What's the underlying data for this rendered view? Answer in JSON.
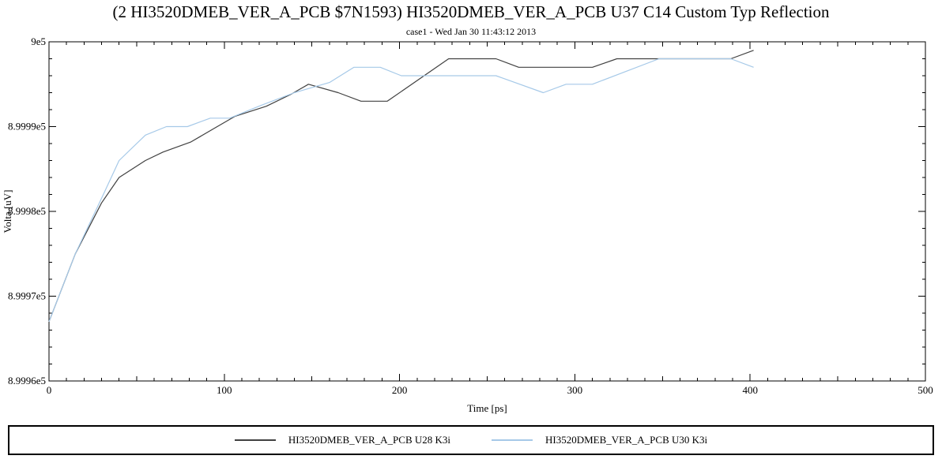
{
  "window": {
    "name": "reflection-waveform-viewer"
  },
  "chart_data": {
    "type": "line",
    "title": "(2 HI3520DMEB_VER_A_PCB $7N1593) HI3520DMEB_VER_A_PCB U37 C14 Custom Typ Reflection",
    "subtitle": "case1 - Wed Jan 30 11:43:12 2013",
    "xlabel": "Time [ps]",
    "ylabel": "Volta [uV]",
    "xlim": [
      0,
      500
    ],
    "ylim": [
      899960,
      900000
    ],
    "grid": false,
    "legend_position": "bottom",
    "x_major_ticks": [
      0,
      100,
      200,
      300,
      400,
      500
    ],
    "x_tick_labels": [
      "0",
      "100",
      "200",
      "300",
      "400",
      "500"
    ],
    "x_minor_step": 10,
    "x_medium_step": 50,
    "y_major_ticks": [
      899960,
      899970,
      899980,
      899990,
      900000
    ],
    "y_tick_labels": [
      "8.9996e5",
      "8.9997e5",
      "8.9998e5",
      "8.9999e5",
      "9e5"
    ],
    "y_minor_step": 2,
    "series": [
      {
        "name": "HI3520DMEB_VER_A_PCB U28 K3i",
        "color": "#414141",
        "points": [
          [
            0,
            899967
          ],
          [
            15,
            899975
          ],
          [
            30,
            899981
          ],
          [
            40,
            899984
          ],
          [
            55,
            899986
          ],
          [
            65,
            899987
          ],
          [
            81,
            899988.2
          ],
          [
            96,
            899990
          ],
          [
            106,
            899991.2
          ],
          [
            124,
            899992.4
          ],
          [
            138,
            899993.8
          ],
          [
            148,
            899995
          ],
          [
            165,
            899994
          ],
          [
            178,
            899993
          ],
          [
            193,
            899993
          ],
          [
            228,
            899998
          ],
          [
            255,
            899998
          ],
          [
            268,
            899997
          ],
          [
            310,
            899997
          ],
          [
            324,
            899998
          ],
          [
            389,
            899998
          ],
          [
            402,
            899999
          ]
        ]
      },
      {
        "name": "HI3520DMEB_VER_A_PCB U30 K3i",
        "color": "#a6c9e8",
        "points": [
          [
            0,
            899967
          ],
          [
            15,
            899975
          ],
          [
            31,
            899982
          ],
          [
            40,
            899986
          ],
          [
            55,
            899989
          ],
          [
            67,
            899990
          ],
          [
            79,
            899990
          ],
          [
            92,
            899991
          ],
          [
            103,
            899991
          ],
          [
            121,
            899992.5
          ],
          [
            140,
            899994
          ],
          [
            160,
            899995.2
          ],
          [
            174,
            899997
          ],
          [
            189,
            899997
          ],
          [
            201,
            899996
          ],
          [
            255,
            899996
          ],
          [
            282,
            899994
          ],
          [
            295,
            899995
          ],
          [
            310,
            899995
          ],
          [
            348,
            899998
          ],
          [
            389,
            899998
          ],
          [
            402,
            899997
          ]
        ]
      }
    ]
  }
}
